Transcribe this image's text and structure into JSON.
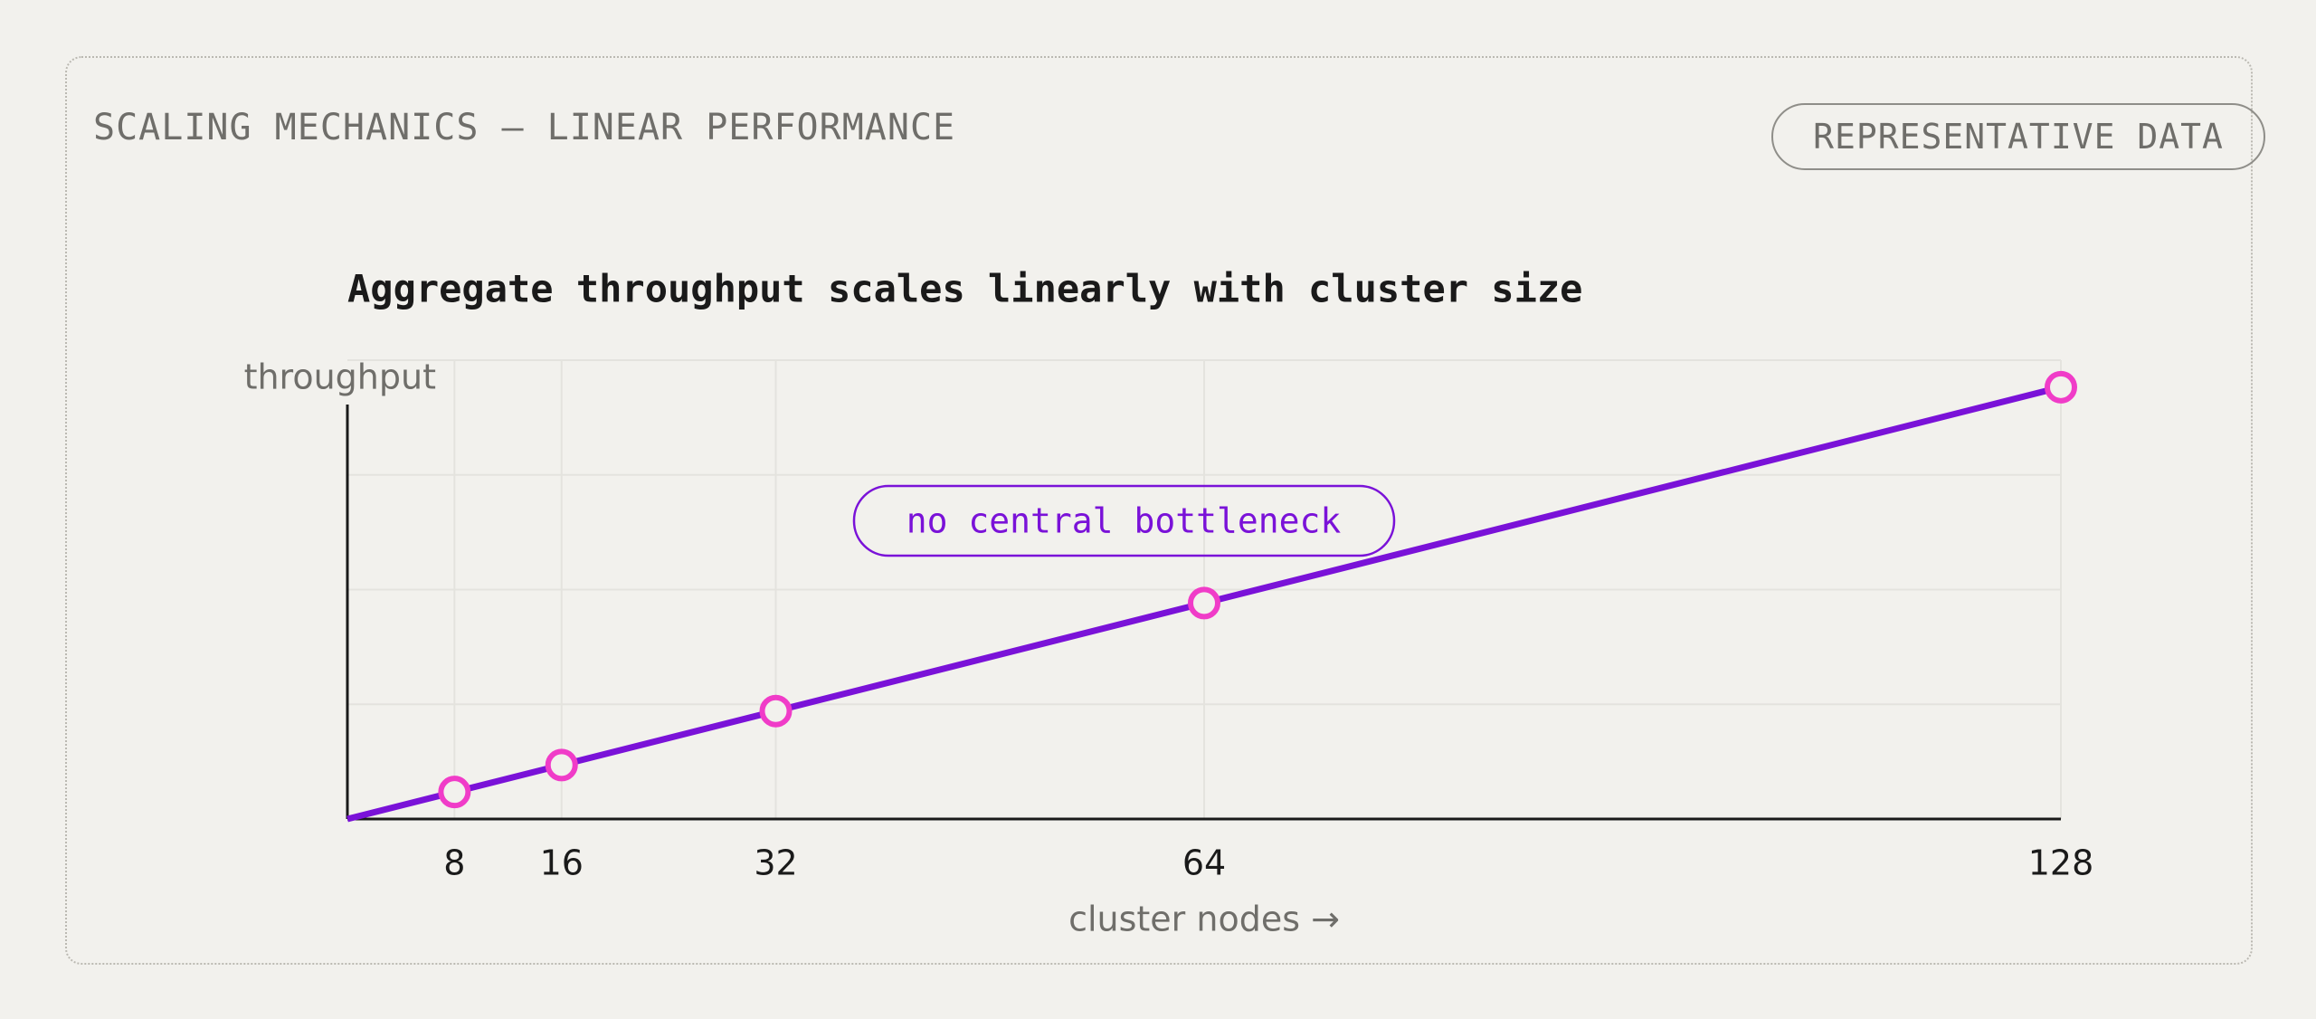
{
  "header": {
    "title": "SCALING MECHANICS — LINEAR PERFORMANCE",
    "badge": "REPRESENTATIVE DATA"
  },
  "chart_data": {
    "type": "line",
    "title": "Aggregate throughput scales linearly with cluster size",
    "y_label": "throughput",
    "x_label": "cluster nodes →",
    "annotation": "no central bottleneck",
    "x": [
      0,
      8,
      16,
      32,
      64,
      128
    ],
    "series": [
      {
        "name": "throughput",
        "color": "#7a12d8",
        "marker_color": "#f03cc8",
        "values": [
          0,
          8,
          16,
          32,
          64,
          128
        ]
      }
    ],
    "xlim": [
      0,
      128
    ],
    "xticks": [
      8,
      16,
      32,
      64,
      128
    ],
    "ylim": [
      0,
      136
    ],
    "ygrid": [
      34,
      68,
      102,
      136
    ],
    "grid": true
  }
}
